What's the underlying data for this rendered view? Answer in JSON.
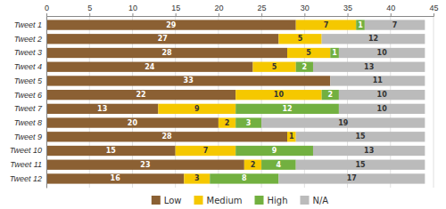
{
  "chart_data": {
    "type": "bar",
    "orientation": "horizontal",
    "stacked": true,
    "data_labels": true,
    "grid": true,
    "legend": "bottom",
    "categories": [
      "Tweet 1",
      "Tweet 2",
      "Tweet 3",
      "Tweet 4",
      "Tweet 5",
      "Tweet 6",
      "Tweet 7",
      "Tweet 8",
      "Tweet 9",
      "Tweet 10",
      "Tweet 11",
      "Tweet 12"
    ],
    "series": [
      {
        "name": "Low",
        "color": "#8B6033",
        "values": [
          29,
          27,
          28,
          24,
          33,
          22,
          13,
          20,
          28,
          15,
          23,
          16
        ]
      },
      {
        "name": "Medium",
        "color": "#F5C800",
        "values": [
          7,
          5,
          5,
          5,
          0,
          10,
          9,
          2,
          1,
          7,
          2,
          3
        ]
      },
      {
        "name": "High",
        "color": "#72B040",
        "values": [
          1,
          0,
          1,
          2,
          0,
          2,
          12,
          3,
          0,
          9,
          4,
          8
        ]
      },
      {
        "name": "N/A",
        "color": "#bbbbbb",
        "values": [
          7,
          12,
          10,
          13,
          11,
          10,
          10,
          19,
          15,
          13,
          15,
          17
        ]
      }
    ],
    "xlim": [
      0,
      45
    ],
    "xticks": [
      0,
      5,
      10,
      15,
      20,
      25,
      30,
      35,
      40,
      45
    ]
  }
}
